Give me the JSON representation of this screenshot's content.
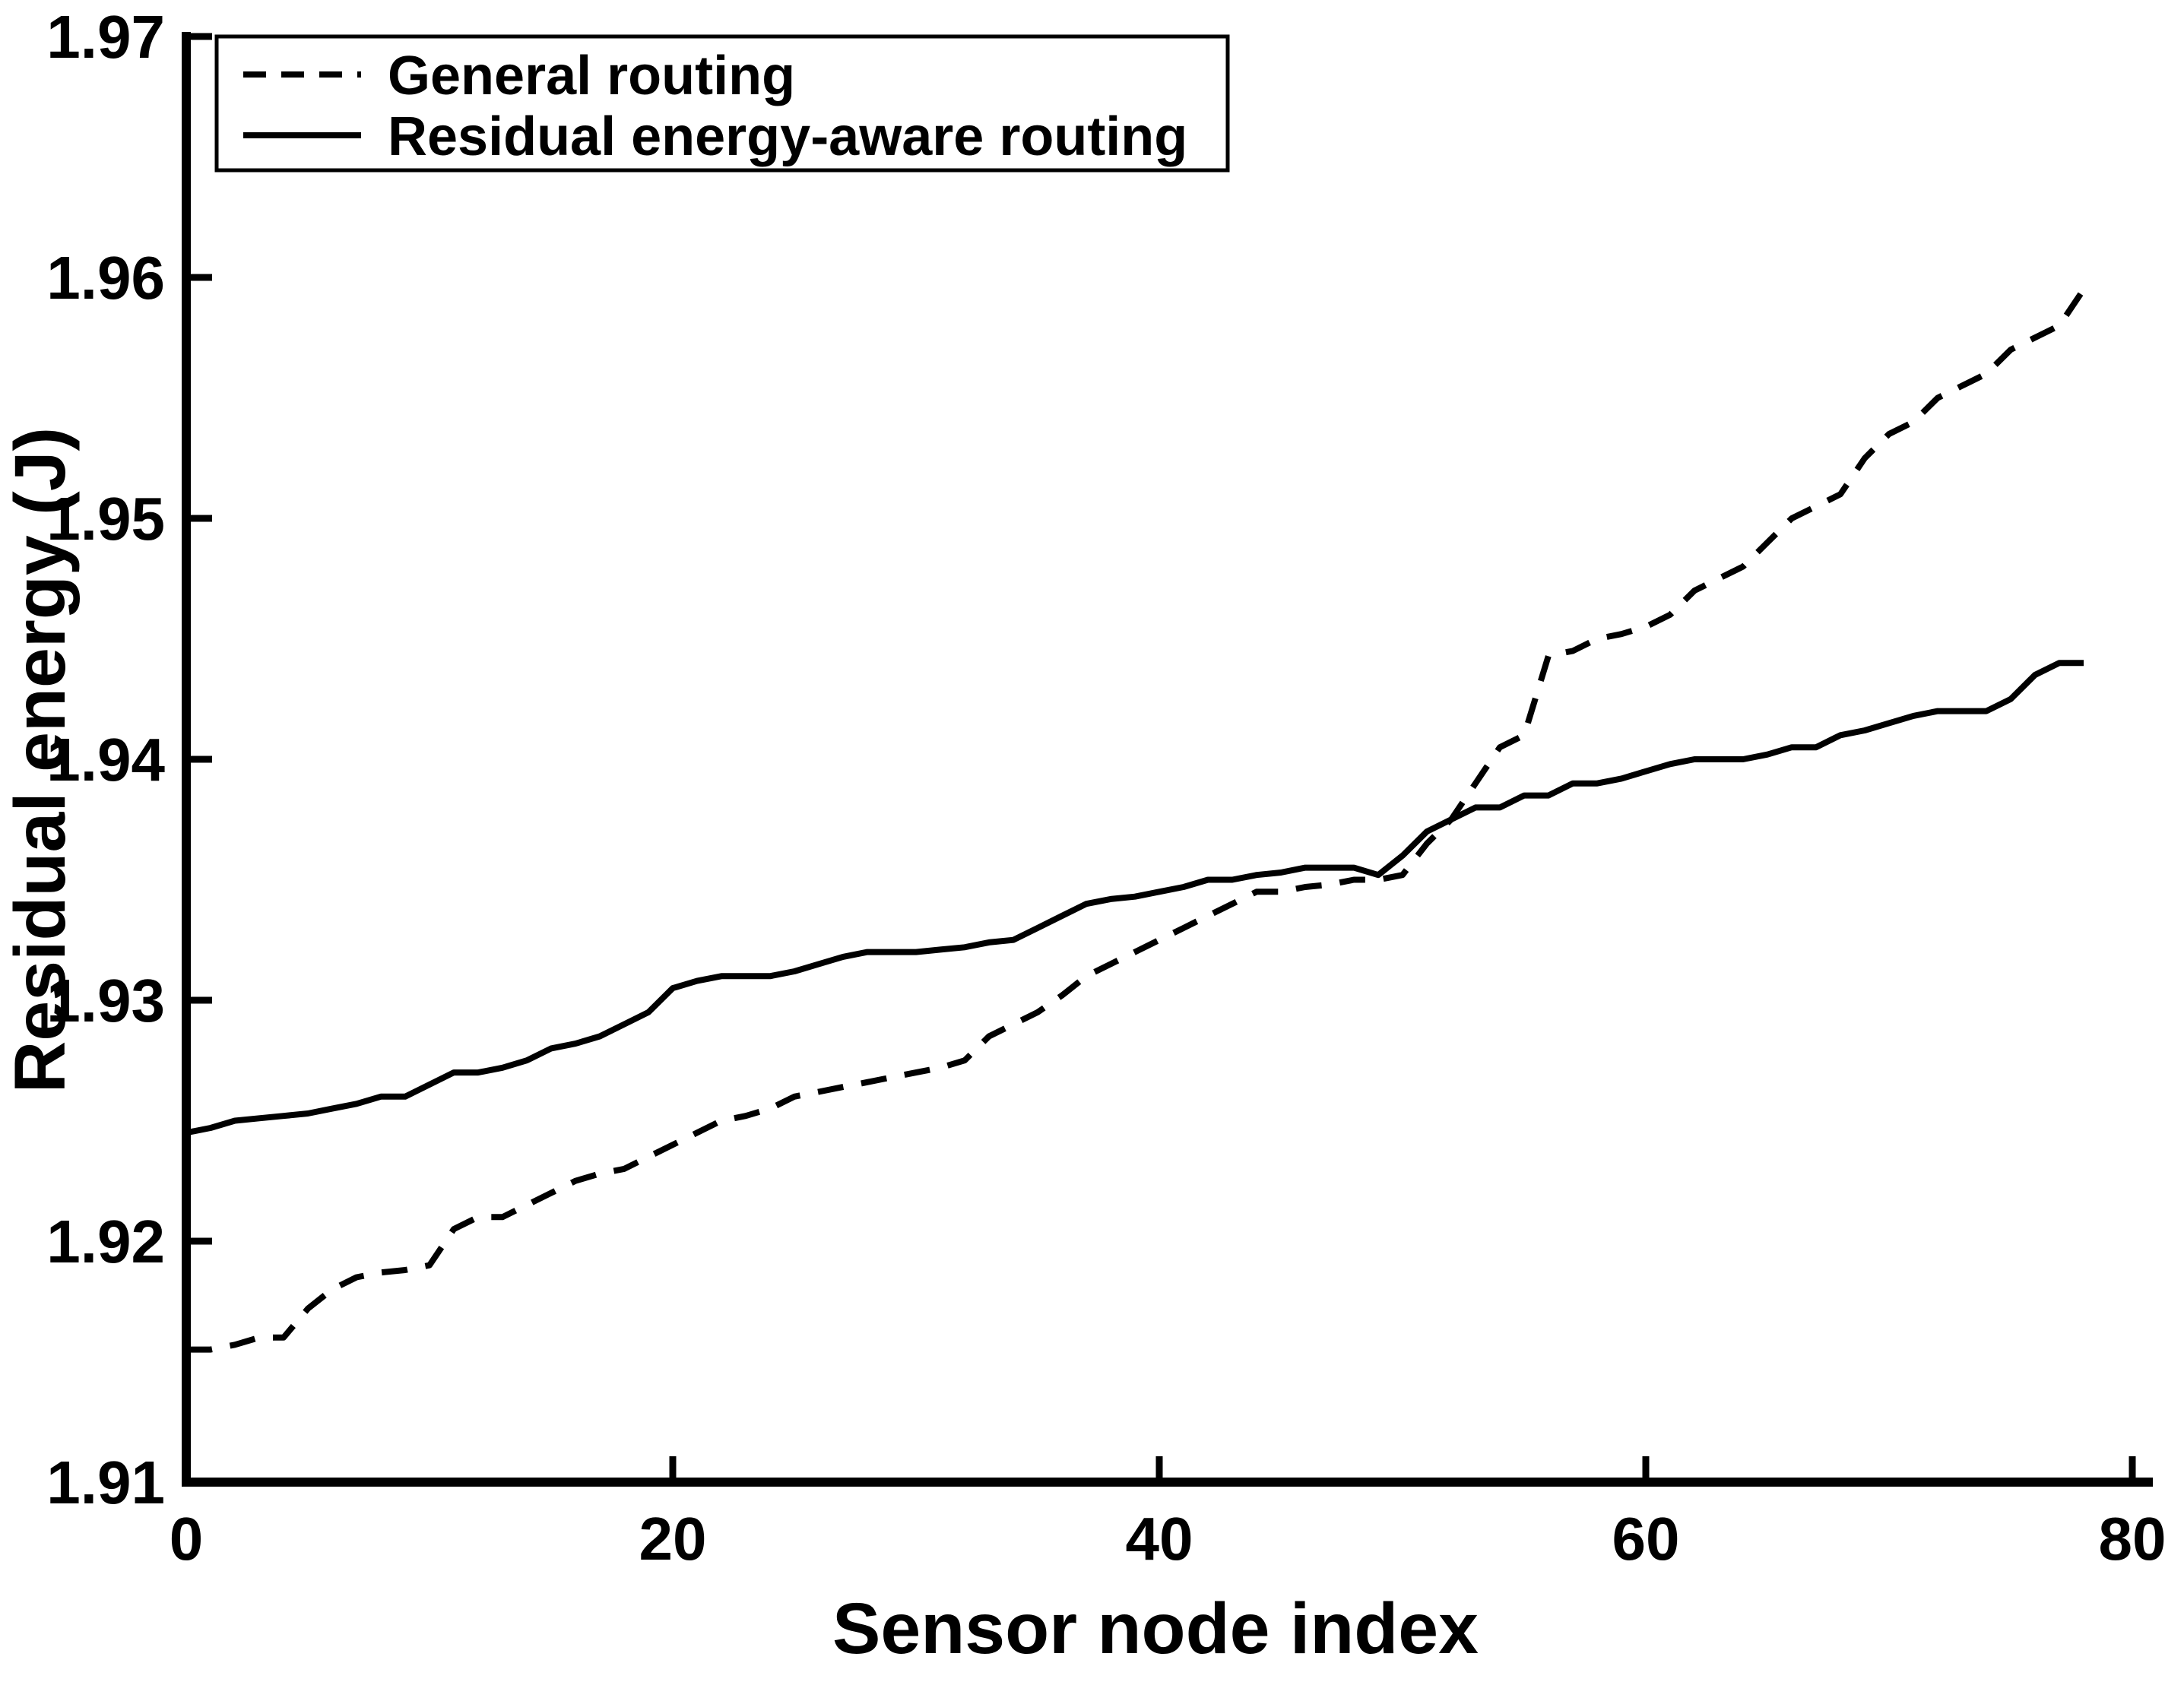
{
  "chart_data": {
    "type": "line",
    "title": "",
    "xlabel": "Sensor node index",
    "ylabel": "Residual energy (J)",
    "xlim": [
      0,
      80
    ],
    "ylim": [
      1.91,
      1.97
    ],
    "xticks": [
      0,
      20,
      40,
      60,
      80
    ],
    "yticks": [
      1.91,
      1.92,
      1.93,
      1.94,
      1.95,
      1.96,
      1.97
    ],
    "grid": false,
    "legend_position": "top-left",
    "line_color": "#000000",
    "background_color": "#ffffff",
    "series": [
      {
        "name": "General routing",
        "style": "dashed",
        "points": [
          [
            0,
            1.9155
          ],
          [
            1,
            1.9155
          ],
          [
            2,
            1.9157
          ],
          [
            3,
            1.916
          ],
          [
            4,
            1.916
          ],
          [
            5,
            1.9172
          ],
          [
            6,
            1.918
          ],
          [
            7,
            1.9185
          ],
          [
            8,
            1.9187
          ],
          [
            9,
            1.9188
          ],
          [
            10,
            1.919
          ],
          [
            11,
            1.9205
          ],
          [
            12,
            1.921
          ],
          [
            13,
            1.921
          ],
          [
            14,
            1.9215
          ],
          [
            15,
            1.922
          ],
          [
            16,
            1.9225
          ],
          [
            17,
            1.9228
          ],
          [
            18,
            1.923
          ],
          [
            19,
            1.9235
          ],
          [
            20,
            1.924
          ],
          [
            21,
            1.9245
          ],
          [
            22,
            1.925
          ],
          [
            23,
            1.9252
          ],
          [
            24,
            1.9255
          ],
          [
            25,
            1.926
          ],
          [
            26,
            1.9262
          ],
          [
            27,
            1.9264
          ],
          [
            28,
            1.9266
          ],
          [
            29,
            1.9268
          ],
          [
            30,
            1.927
          ],
          [
            31,
            1.9272
          ],
          [
            32,
            1.9275
          ],
          [
            33,
            1.9285
          ],
          [
            34,
            1.929
          ],
          [
            35,
            1.9295
          ],
          [
            36,
            1.9302
          ],
          [
            37,
            1.931
          ],
          [
            38,
            1.9315
          ],
          [
            39,
            1.932
          ],
          [
            40,
            1.9325
          ],
          [
            41,
            1.933
          ],
          [
            42,
            1.9335
          ],
          [
            43,
            1.934
          ],
          [
            44,
            1.9345
          ],
          [
            45,
            1.9345
          ],
          [
            46,
            1.9347
          ],
          [
            47,
            1.9348
          ],
          [
            48,
            1.935
          ],
          [
            49,
            1.935
          ],
          [
            50,
            1.9352
          ],
          [
            51,
            1.9365
          ],
          [
            52,
            1.9375
          ],
          [
            53,
            1.939
          ],
          [
            54,
            1.9405
          ],
          [
            55,
            1.941
          ],
          [
            56,
            1.9443
          ],
          [
            57,
            1.9445
          ],
          [
            58,
            1.945
          ],
          [
            59,
            1.9452
          ],
          [
            60,
            1.9455
          ],
          [
            61,
            1.946
          ],
          [
            62,
            1.947
          ],
          [
            63,
            1.9475
          ],
          [
            64,
            1.948
          ],
          [
            65,
            1.949
          ],
          [
            66,
            1.95
          ],
          [
            67,
            1.9505
          ],
          [
            68,
            1.951
          ],
          [
            69,
            1.9525
          ],
          [
            70,
            1.9535
          ],
          [
            71,
            1.954
          ],
          [
            72,
            1.955
          ],
          [
            73,
            1.9555
          ],
          [
            74,
            1.956
          ],
          [
            75,
            1.957
          ],
          [
            76,
            1.9575
          ],
          [
            77,
            1.958
          ],
          [
            78,
            1.9595
          ]
        ]
      },
      {
        "name": "Residual energy-aware routing",
        "style": "solid",
        "points": [
          [
            0,
            1.9245
          ],
          [
            1,
            1.9247
          ],
          [
            2,
            1.925
          ],
          [
            3,
            1.9251
          ],
          [
            4,
            1.9252
          ],
          [
            5,
            1.9253
          ],
          [
            6,
            1.9255
          ],
          [
            7,
            1.9257
          ],
          [
            8,
            1.926
          ],
          [
            9,
            1.926
          ],
          [
            10,
            1.9265
          ],
          [
            11,
            1.927
          ],
          [
            12,
            1.927
          ],
          [
            13,
            1.9272
          ],
          [
            14,
            1.9275
          ],
          [
            15,
            1.928
          ],
          [
            16,
            1.9282
          ],
          [
            17,
            1.9285
          ],
          [
            18,
            1.929
          ],
          [
            19,
            1.9295
          ],
          [
            20,
            1.9305
          ],
          [
            21,
            1.9308
          ],
          [
            22,
            1.931
          ],
          [
            23,
            1.931
          ],
          [
            24,
            1.931
          ],
          [
            25,
            1.9312
          ],
          [
            26,
            1.9315
          ],
          [
            27,
            1.9318
          ],
          [
            28,
            1.932
          ],
          [
            29,
            1.932
          ],
          [
            30,
            1.932
          ],
          [
            31,
            1.9321
          ],
          [
            32,
            1.9322
          ],
          [
            33,
            1.9324
          ],
          [
            34,
            1.9325
          ],
          [
            35,
            1.933
          ],
          [
            36,
            1.9335
          ],
          [
            37,
            1.934
          ],
          [
            38,
            1.9342
          ],
          [
            39,
            1.9343
          ],
          [
            40,
            1.9345
          ],
          [
            41,
            1.9347
          ],
          [
            42,
            1.935
          ],
          [
            43,
            1.935
          ],
          [
            44,
            1.9352
          ],
          [
            45,
            1.9353
          ],
          [
            46,
            1.9355
          ],
          [
            47,
            1.9355
          ],
          [
            48,
            1.9355
          ],
          [
            49,
            1.9352
          ],
          [
            50,
            1.936
          ],
          [
            51,
            1.937
          ],
          [
            52,
            1.9375
          ],
          [
            53,
            1.938
          ],
          [
            54,
            1.938
          ],
          [
            55,
            1.9385
          ],
          [
            56,
            1.9385
          ],
          [
            57,
            1.939
          ],
          [
            58,
            1.939
          ],
          [
            59,
            1.9392
          ],
          [
            60,
            1.9395
          ],
          [
            61,
            1.9398
          ],
          [
            62,
            1.94
          ],
          [
            63,
            1.94
          ],
          [
            64,
            1.94
          ],
          [
            65,
            1.9402
          ],
          [
            66,
            1.9405
          ],
          [
            67,
            1.9405
          ],
          [
            68,
            1.941
          ],
          [
            69,
            1.9412
          ],
          [
            70,
            1.9415
          ],
          [
            71,
            1.9418
          ],
          [
            72,
            1.942
          ],
          [
            73,
            1.942
          ],
          [
            74,
            1.942
          ],
          [
            75,
            1.9425
          ],
          [
            76,
            1.9435
          ],
          [
            77,
            1.944
          ],
          [
            78,
            1.944
          ]
        ]
      }
    ]
  }
}
